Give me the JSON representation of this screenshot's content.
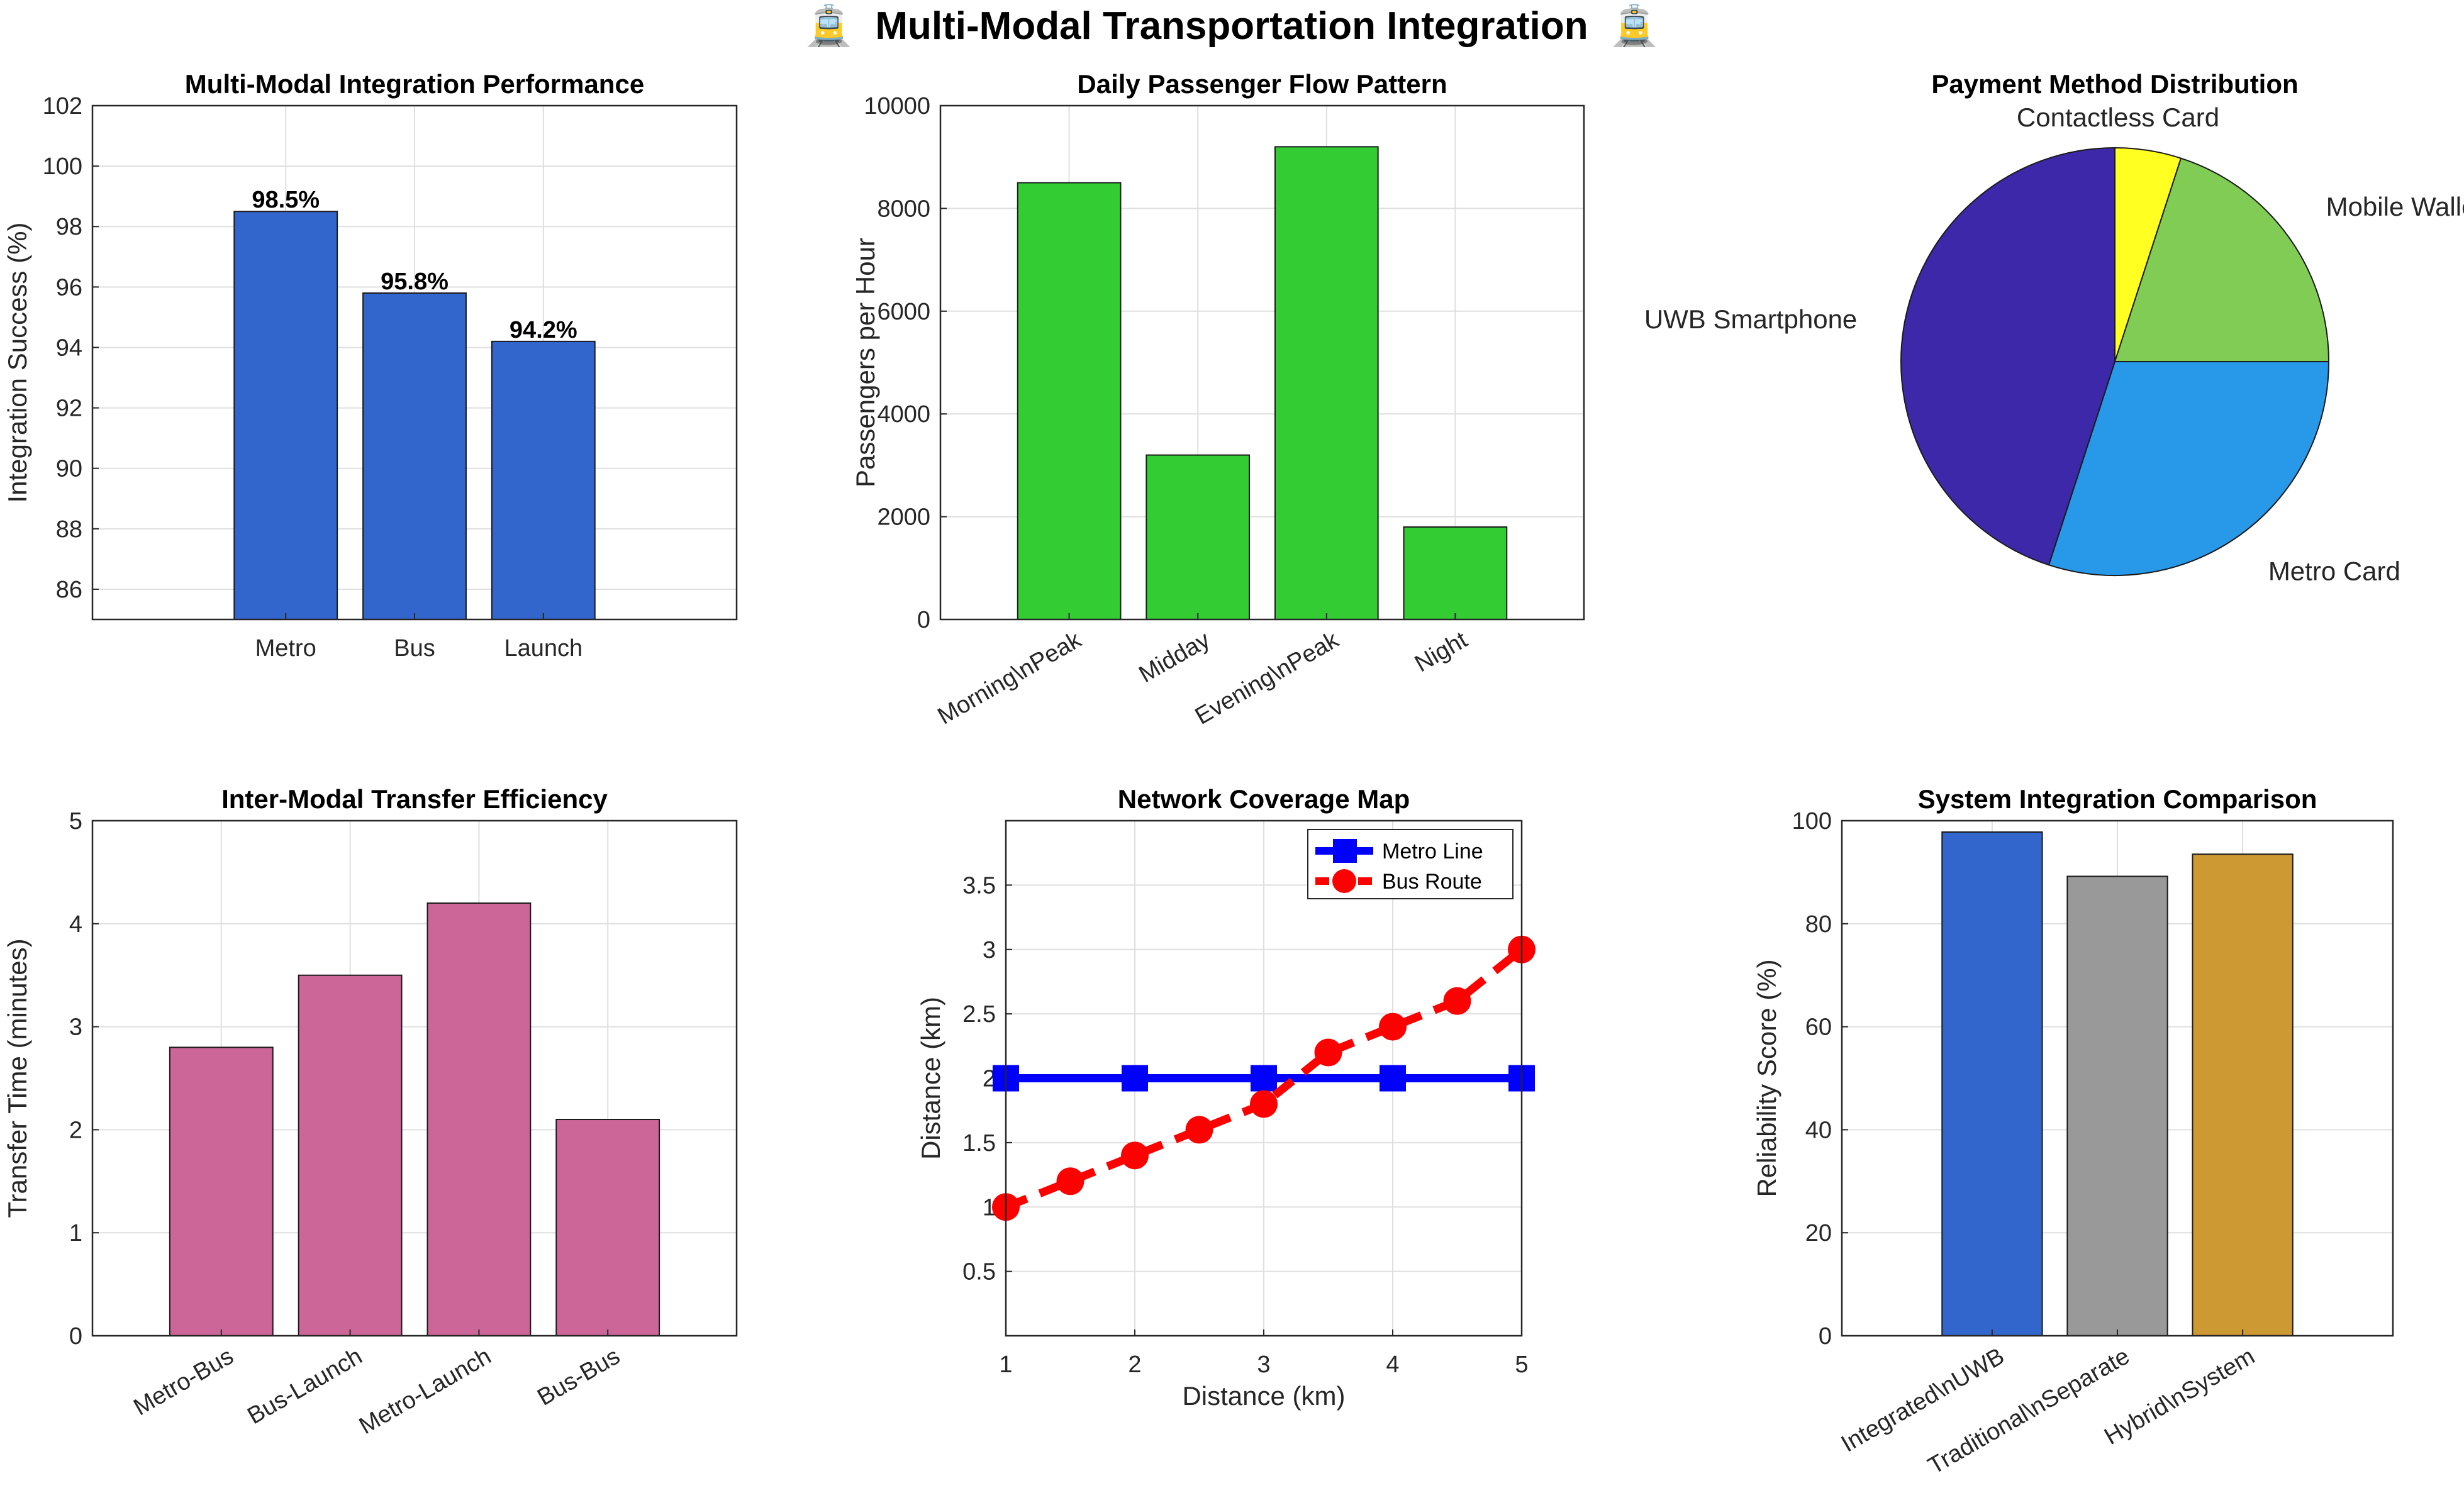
{
  "figure": {
    "title": "Multi-Modal Transportation Integration",
    "title_icon": "tram-icon",
    "title_icon_glyph": "🚊"
  },
  "chart_data": [
    {
      "id": "integration",
      "type": "bar",
      "title": "Multi-Modal Integration Performance",
      "ylabel": "Integration Success (%)",
      "xlabel": "",
      "categories": [
        "Metro",
        "Bus",
        "Launch"
      ],
      "values": [
        98.5,
        95.8,
        94.2
      ],
      "data_labels": [
        "98.5%",
        "95.8%",
        "94.2%"
      ],
      "ylim": [
        85,
        102
      ],
      "yticks": [
        86,
        88,
        90,
        92,
        94,
        96,
        98,
        100,
        102
      ],
      "color": "#3366cc",
      "grid": true
    },
    {
      "id": "flow",
      "type": "bar",
      "title": "Daily Passenger Flow Pattern",
      "ylabel": "Passengers per Hour",
      "xlabel": "",
      "categories": [
        "Morning\\nPeak",
        "Midday",
        "Evening\\nPeak",
        "Night"
      ],
      "values": [
        8500,
        3200,
        9200,
        1800
      ],
      "ylim": [
        0,
        10000
      ],
      "yticks": [
        0,
        2000,
        4000,
        6000,
        8000,
        10000
      ],
      "color": "#33cc33",
      "grid": true,
      "rotated_labels": true
    },
    {
      "id": "payment",
      "type": "pie",
      "title": "Payment Method Distribution",
      "labels": [
        "Contactless Card",
        "Mobile Wallet",
        "Metro Card",
        "UWB Smartphone"
      ],
      "values": [
        5,
        20,
        30,
        45
      ],
      "colors": [
        "#ffff22",
        "#80cc55",
        "#2898e8",
        "#3c28a8"
      ]
    },
    {
      "id": "transfer",
      "type": "bar",
      "title": "Inter-Modal Transfer Efficiency",
      "ylabel": "Transfer Time (minutes)",
      "xlabel": "",
      "categories": [
        "Metro-Bus",
        "Bus-Launch",
        "Metro-Launch",
        "Bus-Bus"
      ],
      "values": [
        2.8,
        3.5,
        4.2,
        2.1
      ],
      "ylim": [
        0,
        5
      ],
      "yticks": [
        0,
        1,
        2,
        3,
        4,
        5
      ],
      "color": "#cc6699",
      "grid": true,
      "rotated_labels": true
    },
    {
      "id": "coverage",
      "type": "line",
      "title": "Network Coverage Map",
      "xlabel": "Distance (km)",
      "ylabel": "Distance (km)",
      "xlim": [
        1,
        5
      ],
      "ylim": [
        0,
        4
      ],
      "xticks": [
        1,
        2,
        3,
        4,
        5
      ],
      "yticks": [
        0.5,
        1,
        1.5,
        2,
        2.5,
        3,
        3.5
      ],
      "legend_position": "top-right",
      "grid": true,
      "series": [
        {
          "name": "Metro Line",
          "color": "#0000ff",
          "marker": "square",
          "dash": "solid",
          "x": [
            1,
            2,
            3,
            4,
            5
          ],
          "y": [
            2,
            2,
            2,
            2,
            2
          ]
        },
        {
          "name": "Bus Route",
          "color": "#ff0000",
          "marker": "circle",
          "dash": "dashed",
          "x": [
            1,
            1.5,
            2,
            2.5,
            3,
            3.5,
            4,
            4.5,
            5
          ],
          "y": [
            1,
            1.2,
            1.4,
            1.6,
            1.8,
            2.2,
            2.4,
            2.6,
            3
          ]
        }
      ]
    },
    {
      "id": "comparison",
      "type": "bar",
      "title": "System Integration Comparison",
      "ylabel": "Reliability Score (%)",
      "xlabel": "",
      "categories": [
        "Integrated\\nUWB",
        "Traditional\\nSeparate",
        "Hybrid\\nSystem"
      ],
      "values": [
        97.8,
        89.2,
        93.5
      ],
      "ylim": [
        0,
        100
      ],
      "yticks": [
        0,
        20,
        40,
        60,
        80,
        100
      ],
      "colors": [
        "#3366cc",
        "#999999",
        "#cc9933"
      ],
      "grid": true,
      "rotated_labels": true
    }
  ]
}
